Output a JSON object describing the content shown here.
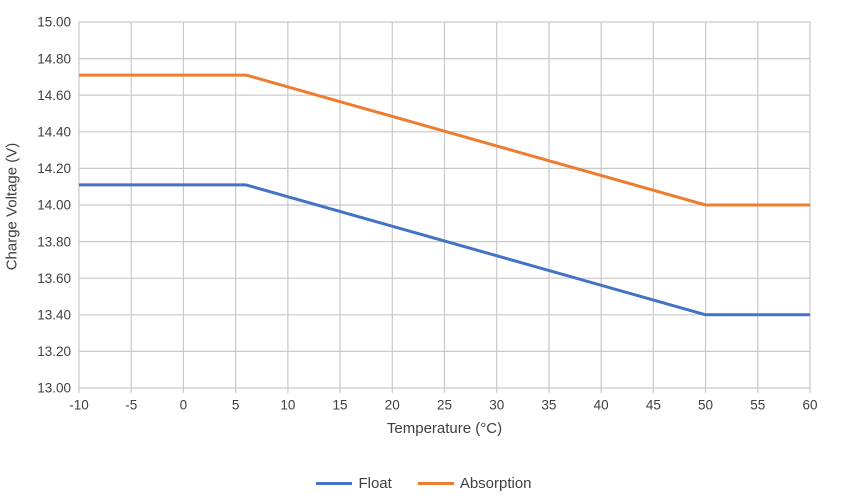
{
  "chart_data": {
    "type": "line",
    "xlabel": "Temperature (°C)",
    "ylabel": "Charge Voltage (V)",
    "xlim": [
      -10,
      60
    ],
    "ylim": [
      13.0,
      15.0
    ],
    "x_ticks": [
      "-10",
      "-5",
      "0",
      "5",
      "10",
      "15",
      "20",
      "25",
      "30",
      "35",
      "40",
      "45",
      "50",
      "55",
      "60"
    ],
    "y_ticks": [
      "15.00",
      "14.80",
      "14.60",
      "14.40",
      "14.20",
      "14.00",
      "13.80",
      "13.60",
      "13.40",
      "13.20",
      "13.00"
    ],
    "grid": true,
    "legend_position": "bottom",
    "series": [
      {
        "name": "Float",
        "color": "#4472C4",
        "points": [
          [
            -10,
            14.11
          ],
          [
            6,
            14.11
          ],
          [
            50,
            13.4
          ],
          [
            60,
            13.4
          ]
        ]
      },
      {
        "name": "Absorption",
        "color": "#ED7D31",
        "points": [
          [
            -10,
            14.71
          ],
          [
            6,
            14.71
          ],
          [
            50,
            14.0
          ],
          [
            60,
            14.0
          ]
        ]
      }
    ]
  },
  "colors": {
    "gridline": "#C9C9C9",
    "axis_text": "#3f3f3f",
    "background": "#ffffff"
  }
}
